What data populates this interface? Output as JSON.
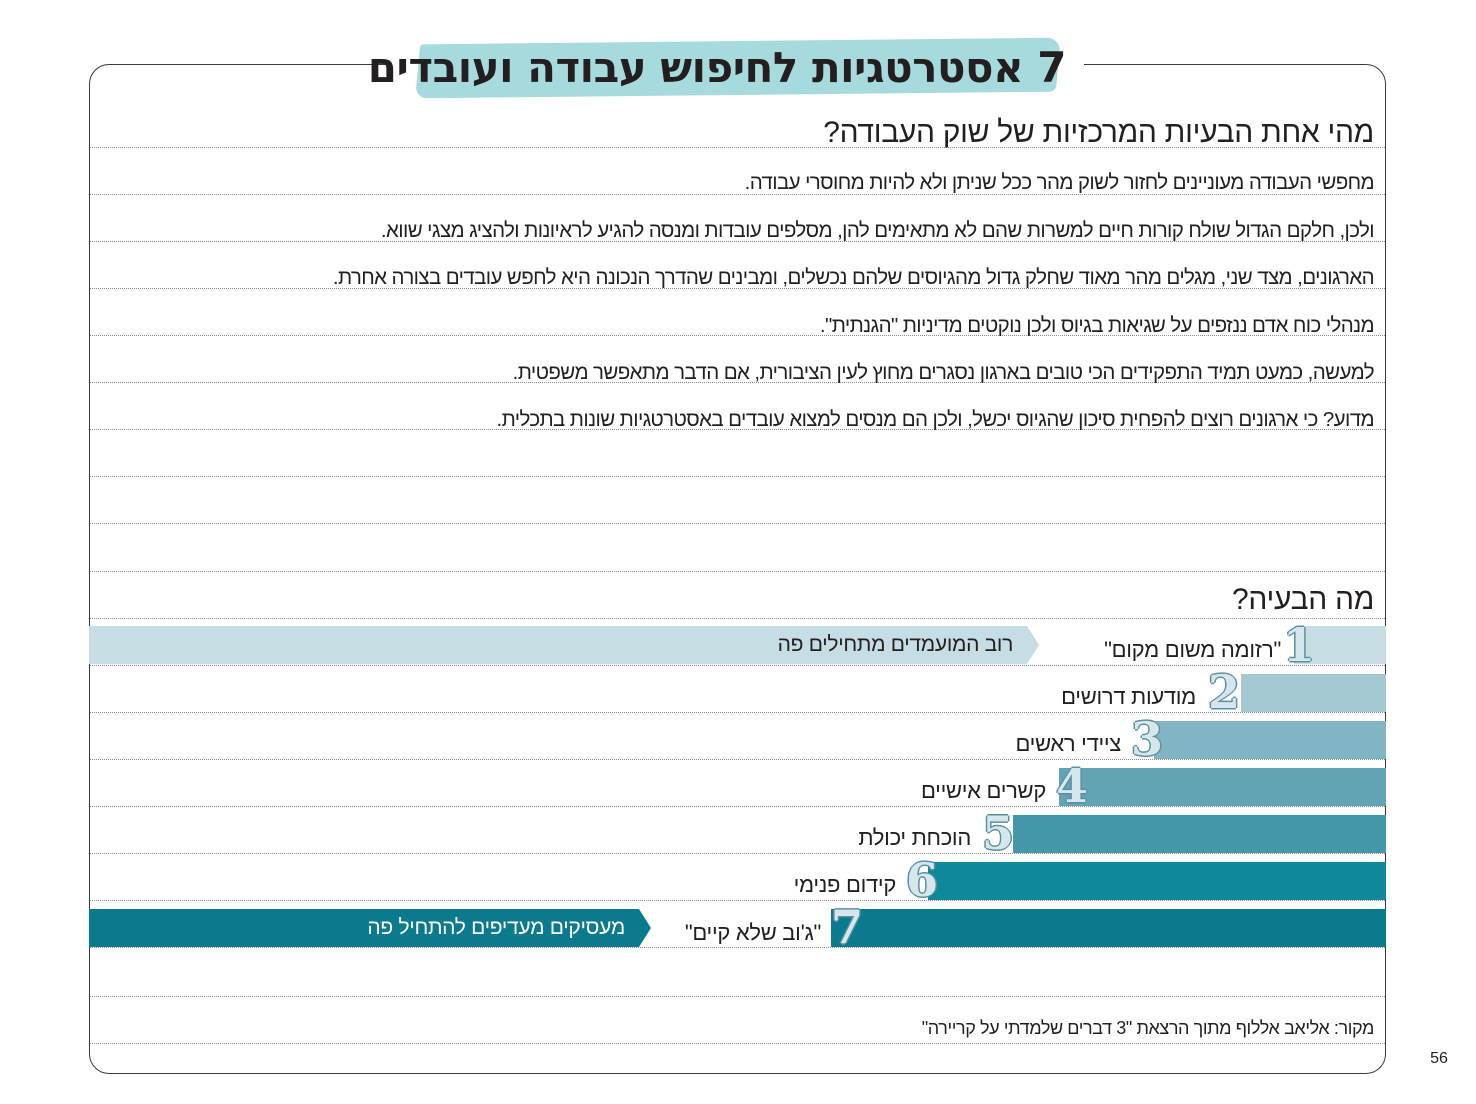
{
  "title": "7 אסטרטגיות לחיפוש עבודה ועובדים",
  "section1": {
    "heading": "מהי אחת הבעיות המרכזיות של שוק העבודה?",
    "lines": [
      "מחפשי העבודה מעוניינים לחזור לשוק מהר ככל שניתן ולא להיות מחוסרי עבודה.",
      "ולכן, חלקם הגדול שולח קורות חיים למשרות שהם לא מתאימים להן, מסלפים עובדות ומנסה להגיע לראיונות ולהציג מצגי שווא.",
      "הארגונים, מצד שני, מגלים מהר מאוד שחלק גדול מהגיוסים שלהם נכשלים, ומבינים שהדרך הנכונה היא לחפש עובדים בצורה אחרת.",
      "מנהלי כוח אדם ננזפים על שגיאות בגיוס ולכן נוקטים מדיניות \"הגנתית\".",
      "למעשה, כמעט תמיד התפקידים הכי טובים בארגון נסגרים מחוץ לעין הציבורית, אם הדבר מתאפשר משפטית.",
      "מדוע? כי ארגונים רוצים להפחית סיכון שהגיוס יכשל, ולכן הם מנסים למצוא עובדים באסטרטגיות שונות בתכלית."
    ]
  },
  "section2": {
    "heading": "מה הבעיה?",
    "arrow_top": "רוב המועמדים מתחילים פה",
    "arrow_bottom": "מעסיקים מעדיפים להתחיל פה",
    "strategies": [
      {
        "num": "1",
        "label": "\"רזומה משום מקום\"",
        "color": "#c5dde3"
      },
      {
        "num": "2",
        "label": "מודעות דרושים",
        "color": "#a3c8d2"
      },
      {
        "num": "3",
        "label": "ציידי ראשים",
        "color": "#82b5c3"
      },
      {
        "num": "4",
        "label": "קשרים אישיים",
        "color": "#62a3b4"
      },
      {
        "num": "5",
        "label": "הוכחת יכולת",
        "color": "#4496a9"
      },
      {
        "num": "6",
        "label": "קידום פנימי",
        "color": "#0f889c"
      },
      {
        "num": "7",
        "label": "\"ג'וב שלא קיים\"",
        "color": "#0c7a8d"
      }
    ],
    "arrow_top_color": "#c5dde3",
    "arrow_bottom_color": "#0c7a8d"
  },
  "source": "מקור: אליאב אללוף מתוך הרצאת \"3 דברים שלמדתי על קריירה\"",
  "page_number": "56"
}
